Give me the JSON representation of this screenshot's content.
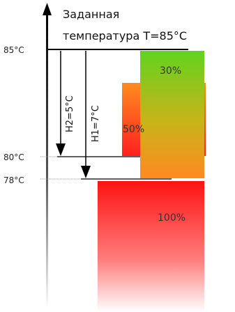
{
  "title": {
    "line1": "Заданная",
    "line2": "температура T=85°C"
  },
  "axis": {
    "ticks": [
      "85°C",
      "80°C",
      "78°C"
    ]
  },
  "arrows": {
    "h2": "H2=5°C",
    "h1": "H1=7°C"
  },
  "bars": {
    "top": "30%",
    "middle": "50%",
    "bottom": "100%"
  },
  "colors": {
    "green": "#66d41f",
    "orange": "#ff8d1f",
    "red": "#ff1a1a",
    "pale": "#ffffff"
  }
}
